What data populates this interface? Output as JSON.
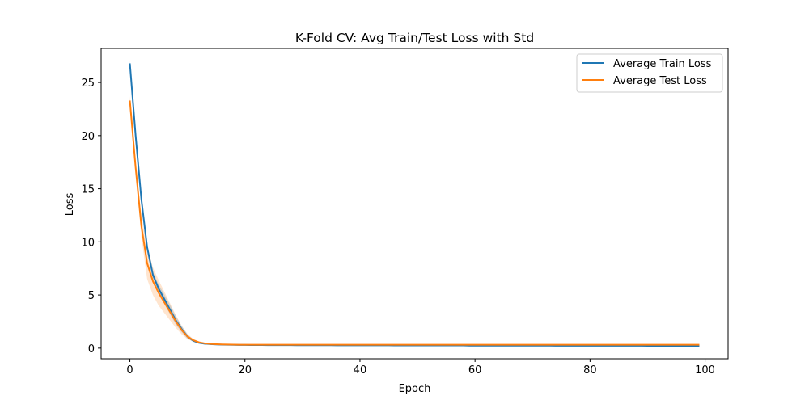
{
  "chart_data": {
    "type": "line",
    "title": "K-Fold CV: Avg Train/Test Loss with Std",
    "xlabel": "Epoch",
    "ylabel": "Loss",
    "xlim": [
      -5,
      104
    ],
    "ylim": [
      -1.0,
      28.2
    ],
    "xticks": [
      0,
      20,
      40,
      60,
      80,
      100
    ],
    "yticks": [
      0,
      5,
      10,
      15,
      20,
      25
    ],
    "grid": false,
    "legend_position": "top-right",
    "x": [
      0,
      1,
      2,
      3,
      4,
      5,
      6,
      7,
      8,
      9,
      10,
      11,
      12,
      13,
      14,
      15,
      16,
      17,
      18,
      19,
      20,
      21,
      22,
      23,
      24,
      25,
      26,
      27,
      28,
      29,
      30,
      31,
      32,
      33,
      34,
      35,
      36,
      37,
      38,
      39,
      40,
      41,
      42,
      43,
      44,
      45,
      46,
      47,
      48,
      49,
      50,
      51,
      52,
      53,
      54,
      55,
      56,
      57,
      58,
      59,
      60,
      61,
      62,
      63,
      64,
      65,
      66,
      67,
      68,
      69,
      70,
      71,
      72,
      73,
      74,
      75,
      76,
      77,
      78,
      79,
      80,
      81,
      82,
      83,
      84,
      85,
      86,
      87,
      88,
      89,
      90,
      91,
      92,
      93,
      94,
      95,
      96,
      97,
      98,
      99
    ],
    "series": [
      {
        "name": "Average Train Loss",
        "color": "#1f77b4",
        "fill_color": "#1f77b4",
        "values": [
          26.8,
          20.0,
          14.0,
          9.5,
          6.9,
          5.6,
          4.6,
          3.6,
          2.6,
          1.8,
          1.1,
          0.7,
          0.5,
          0.42,
          0.38,
          0.35,
          0.33,
          0.32,
          0.31,
          0.3,
          0.3,
          0.29,
          0.29,
          0.29,
          0.28,
          0.28,
          0.28,
          0.28,
          0.28,
          0.27,
          0.27,
          0.27,
          0.27,
          0.27,
          0.27,
          0.27,
          0.26,
          0.26,
          0.26,
          0.26,
          0.26,
          0.26,
          0.26,
          0.26,
          0.26,
          0.26,
          0.25,
          0.25,
          0.25,
          0.25,
          0.25,
          0.25,
          0.25,
          0.25,
          0.25,
          0.25,
          0.25,
          0.25,
          0.25,
          0.24,
          0.24,
          0.24,
          0.24,
          0.24,
          0.24,
          0.24,
          0.24,
          0.24,
          0.24,
          0.24,
          0.24,
          0.24,
          0.24,
          0.24,
          0.23,
          0.23,
          0.23,
          0.23,
          0.23,
          0.23,
          0.23,
          0.23,
          0.23,
          0.23,
          0.23,
          0.23,
          0.23,
          0.23,
          0.23,
          0.23,
          0.22,
          0.22,
          0.22,
          0.22,
          0.22,
          0.22,
          0.22,
          0.22,
          0.22,
          0.22
        ],
        "std": [
          0.25,
          0.3,
          0.35,
          0.3,
          0.3,
          0.4,
          0.45,
          0.45,
          0.4,
          0.3,
          0.2,
          0.1,
          0.06,
          0.04,
          0.03,
          0.02,
          0.02,
          0.02,
          0.02,
          0.02,
          0.02,
          0.02,
          0.02,
          0.02,
          0.02,
          0.02,
          0.02,
          0.02,
          0.02,
          0.02,
          0.02,
          0.02,
          0.02,
          0.02,
          0.02,
          0.02,
          0.02,
          0.02,
          0.02,
          0.02,
          0.02,
          0.02,
          0.02,
          0.02,
          0.02,
          0.02,
          0.02,
          0.02,
          0.02,
          0.02,
          0.02,
          0.02,
          0.02,
          0.02,
          0.02,
          0.02,
          0.02,
          0.02,
          0.02,
          0.02,
          0.02,
          0.02,
          0.02,
          0.02,
          0.02,
          0.02,
          0.02,
          0.02,
          0.02,
          0.02,
          0.02,
          0.02,
          0.02,
          0.02,
          0.02,
          0.02,
          0.02,
          0.02,
          0.02,
          0.02,
          0.02,
          0.02,
          0.02,
          0.02,
          0.02,
          0.02,
          0.02,
          0.02,
          0.02,
          0.02,
          0.02,
          0.02,
          0.02,
          0.02,
          0.02,
          0.02,
          0.02,
          0.02,
          0.02,
          0.02
        ]
      },
      {
        "name": "Average Test Loss",
        "color": "#ff7f0e",
        "fill_color": "#ff7f0e",
        "values": [
          23.3,
          17.0,
          11.5,
          8.0,
          6.3,
          5.2,
          4.3,
          3.4,
          2.5,
          1.7,
          1.1,
          0.75,
          0.55,
          0.45,
          0.4,
          0.37,
          0.35,
          0.34,
          0.33,
          0.32,
          0.32,
          0.32,
          0.32,
          0.32,
          0.32,
          0.32,
          0.32,
          0.32,
          0.32,
          0.32,
          0.32,
          0.32,
          0.32,
          0.32,
          0.32,
          0.32,
          0.32,
          0.32,
          0.32,
          0.32,
          0.32,
          0.32,
          0.32,
          0.32,
          0.32,
          0.32,
          0.32,
          0.32,
          0.32,
          0.32,
          0.32,
          0.32,
          0.32,
          0.32,
          0.32,
          0.32,
          0.32,
          0.32,
          0.32,
          0.32,
          0.32,
          0.32,
          0.32,
          0.32,
          0.32,
          0.32,
          0.32,
          0.32,
          0.32,
          0.32,
          0.32,
          0.32,
          0.32,
          0.32,
          0.32,
          0.32,
          0.32,
          0.32,
          0.32,
          0.32,
          0.32,
          0.32,
          0.32,
          0.32,
          0.32,
          0.32,
          0.32,
          0.32,
          0.32,
          0.32,
          0.32,
          0.32,
          0.32,
          0.32,
          0.32,
          0.32,
          0.32,
          0.32,
          0.32,
          0.32
        ],
        "std": [
          0.4,
          0.6,
          1.0,
          1.5,
          1.3,
          1.2,
          1.0,
          0.8,
          0.6,
          0.4,
          0.25,
          0.12,
          0.08,
          0.06,
          0.05,
          0.04,
          0.04,
          0.04,
          0.03,
          0.03,
          0.03,
          0.03,
          0.03,
          0.03,
          0.03,
          0.03,
          0.03,
          0.03,
          0.03,
          0.03,
          0.03,
          0.03,
          0.03,
          0.03,
          0.03,
          0.03,
          0.03,
          0.03,
          0.03,
          0.03,
          0.03,
          0.03,
          0.03,
          0.03,
          0.03,
          0.03,
          0.03,
          0.03,
          0.03,
          0.03,
          0.03,
          0.03,
          0.03,
          0.03,
          0.03,
          0.03,
          0.03,
          0.03,
          0.03,
          0.03,
          0.03,
          0.03,
          0.03,
          0.03,
          0.03,
          0.03,
          0.03,
          0.03,
          0.03,
          0.03,
          0.03,
          0.03,
          0.03,
          0.03,
          0.03,
          0.03,
          0.03,
          0.03,
          0.03,
          0.03,
          0.03,
          0.03,
          0.03,
          0.03,
          0.03,
          0.03,
          0.03,
          0.03,
          0.03,
          0.03,
          0.03,
          0.03,
          0.03,
          0.03,
          0.03,
          0.03,
          0.03,
          0.03,
          0.03,
          0.03
        ]
      }
    ]
  }
}
